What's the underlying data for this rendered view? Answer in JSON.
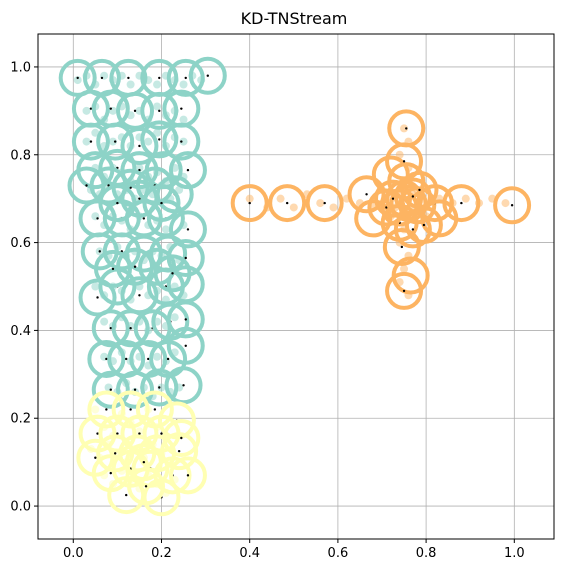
{
  "chart_data": {
    "type": "scatter",
    "title": "KD-TNStream",
    "xlabel": "",
    "ylabel": "",
    "xlim": [
      -0.08,
      1.09
    ],
    "ylim": [
      -0.075,
      1.075
    ],
    "grid": true,
    "xticks": [
      "0.0",
      "0.2",
      "0.4",
      "0.6",
      "0.8",
      "1.0"
    ],
    "yticks": [
      "0.0",
      "0.2",
      "0.4",
      "0.6",
      "0.8",
      "1.0"
    ],
    "colors": {
      "teal": "#8dd3c7",
      "yellow": "#ffffb3",
      "orange": "#fdb462",
      "center": "#000000"
    },
    "series": [
      {
        "color": "teal",
        "points": [
          [
            0.01,
            0.97
          ],
          [
            0.03,
            0.98
          ],
          [
            0.05,
            0.96
          ],
          [
            0.07,
            0.98
          ],
          [
            0.09,
            0.97
          ],
          [
            0.11,
            0.98
          ],
          [
            0.13,
            0.96
          ],
          [
            0.15,
            0.98
          ],
          [
            0.17,
            0.97
          ],
          [
            0.19,
            0.96
          ],
          [
            0.21,
            0.98
          ],
          [
            0.23,
            0.97
          ],
          [
            0.25,
            0.96
          ],
          [
            0.27,
            0.98
          ],
          [
            0.29,
            0.97
          ],
          [
            0.03,
            0.9
          ],
          [
            0.05,
            0.91
          ],
          [
            0.07,
            0.88
          ],
          [
            0.09,
            0.9
          ],
          [
            0.11,
            0.91
          ],
          [
            0.13,
            0.89
          ],
          [
            0.15,
            0.9
          ],
          [
            0.17,
            0.88
          ],
          [
            0.19,
            0.91
          ],
          [
            0.21,
            0.89
          ],
          [
            0.23,
            0.9
          ],
          [
            0.25,
            0.88
          ],
          [
            0.03,
            0.83
          ],
          [
            0.05,
            0.85
          ],
          [
            0.07,
            0.82
          ],
          [
            0.09,
            0.83
          ],
          [
            0.11,
            0.84
          ],
          [
            0.13,
            0.82
          ],
          [
            0.15,
            0.84
          ],
          [
            0.17,
            0.83
          ],
          [
            0.19,
            0.85
          ],
          [
            0.21,
            0.82
          ],
          [
            0.23,
            0.84
          ],
          [
            0.25,
            0.83
          ],
          [
            0.05,
            0.77
          ],
          [
            0.07,
            0.75
          ],
          [
            0.09,
            0.77
          ],
          [
            0.11,
            0.76
          ],
          [
            0.13,
            0.74
          ],
          [
            0.15,
            0.77
          ],
          [
            0.17,
            0.75
          ],
          [
            0.19,
            0.76
          ],
          [
            0.21,
            0.74
          ],
          [
            0.23,
            0.77
          ],
          [
            0.25,
            0.75
          ],
          [
            0.04,
            0.72
          ],
          [
            0.06,
            0.71
          ],
          [
            0.08,
            0.73
          ],
          [
            0.1,
            0.71
          ],
          [
            0.12,
            0.72
          ],
          [
            0.14,
            0.7
          ],
          [
            0.16,
            0.72
          ],
          [
            0.18,
            0.71
          ],
          [
            0.2,
            0.73
          ],
          [
            0.22,
            0.7
          ],
          [
            0.24,
            0.72
          ],
          [
            0.05,
            0.66
          ],
          [
            0.07,
            0.64
          ],
          [
            0.09,
            0.66
          ],
          [
            0.11,
            0.65
          ],
          [
            0.13,
            0.63
          ],
          [
            0.15,
            0.66
          ],
          [
            0.17,
            0.64
          ],
          [
            0.19,
            0.65
          ],
          [
            0.21,
            0.63
          ],
          [
            0.23,
            0.66
          ],
          [
            0.25,
            0.64
          ],
          [
            0.06,
            0.58
          ],
          [
            0.08,
            0.57
          ],
          [
            0.1,
            0.59
          ],
          [
            0.12,
            0.57
          ],
          [
            0.14,
            0.58
          ],
          [
            0.16,
            0.56
          ],
          [
            0.18,
            0.58
          ],
          [
            0.2,
            0.57
          ],
          [
            0.22,
            0.59
          ],
          [
            0.24,
            0.56
          ],
          [
            0.05,
            0.5
          ],
          [
            0.07,
            0.48
          ],
          [
            0.09,
            0.5
          ],
          [
            0.11,
            0.49
          ],
          [
            0.13,
            0.47
          ],
          [
            0.15,
            0.5
          ],
          [
            0.17,
            0.48
          ],
          [
            0.19,
            0.49
          ],
          [
            0.21,
            0.47
          ],
          [
            0.23,
            0.5
          ],
          [
            0.25,
            0.48
          ],
          [
            0.07,
            0.42
          ],
          [
            0.09,
            0.41
          ],
          [
            0.11,
            0.43
          ],
          [
            0.13,
            0.41
          ],
          [
            0.15,
            0.42
          ],
          [
            0.17,
            0.4
          ],
          [
            0.19,
            0.42
          ],
          [
            0.21,
            0.41
          ],
          [
            0.23,
            0.43
          ],
          [
            0.07,
            0.34
          ],
          [
            0.09,
            0.33
          ],
          [
            0.11,
            0.35
          ],
          [
            0.13,
            0.33
          ],
          [
            0.15,
            0.34
          ],
          [
            0.17,
            0.32
          ],
          [
            0.19,
            0.34
          ],
          [
            0.21,
            0.33
          ],
          [
            0.23,
            0.35
          ],
          [
            0.08,
            0.27
          ],
          [
            0.1,
            0.26
          ],
          [
            0.12,
            0.28
          ],
          [
            0.14,
            0.26
          ],
          [
            0.16,
            0.27
          ],
          [
            0.18,
            0.25
          ],
          [
            0.2,
            0.27
          ],
          [
            0.22,
            0.26
          ],
          [
            0.24,
            0.27
          ]
        ],
        "centers": [
          [
            0.01,
            0.975
          ],
          [
            0.065,
            0.975
          ],
          [
            0.125,
            0.975
          ],
          [
            0.195,
            0.975
          ],
          [
            0.255,
            0.975
          ],
          [
            0.305,
            0.98
          ],
          [
            0.04,
            0.905
          ],
          [
            0.085,
            0.905
          ],
          [
            0.14,
            0.9
          ],
          [
            0.195,
            0.9
          ],
          [
            0.245,
            0.905
          ],
          [
            0.04,
            0.83
          ],
          [
            0.095,
            0.83
          ],
          [
            0.15,
            0.82
          ],
          [
            0.195,
            0.835
          ],
          [
            0.245,
            0.83
          ],
          [
            0.05,
            0.765
          ],
          [
            0.1,
            0.77
          ],
          [
            0.15,
            0.765
          ],
          [
            0.205,
            0.765
          ],
          [
            0.26,
            0.765
          ],
          [
            0.03,
            0.73
          ],
          [
            0.08,
            0.73
          ],
          [
            0.13,
            0.725
          ],
          [
            0.185,
            0.73
          ],
          [
            0.23,
            0.71
          ],
          [
            0.055,
            0.655
          ],
          [
            0.11,
            0.655
          ],
          [
            0.16,
            0.655
          ],
          [
            0.21,
            0.655
          ],
          [
            0.26,
            0.63
          ],
          [
            0.06,
            0.58
          ],
          [
            0.11,
            0.58
          ],
          [
            0.16,
            0.575
          ],
          [
            0.215,
            0.575
          ],
          [
            0.255,
            0.565
          ],
          [
            0.055,
            0.475
          ],
          [
            0.1,
            0.5
          ],
          [
            0.15,
            0.48
          ],
          [
            0.21,
            0.5
          ],
          [
            0.255,
            0.505
          ],
          [
            0.085,
            0.405
          ],
          [
            0.13,
            0.405
          ],
          [
            0.18,
            0.405
          ],
          [
            0.22,
            0.42
          ],
          [
            0.255,
            0.425
          ],
          [
            0.075,
            0.335
          ],
          [
            0.12,
            0.335
          ],
          [
            0.17,
            0.335
          ],
          [
            0.215,
            0.335
          ],
          [
            0.255,
            0.365
          ],
          [
            0.085,
            0.265
          ],
          [
            0.14,
            0.265
          ],
          [
            0.195,
            0.27
          ],
          [
            0.25,
            0.275
          ],
          [
            0.09,
            0.54
          ],
          [
            0.14,
            0.545
          ],
          [
            0.19,
            0.545
          ],
          [
            0.225,
            0.53
          ],
          [
            0.1,
            0.69
          ],
          [
            0.2,
            0.69
          ],
          [
            0.15,
            0.7
          ]
        ]
      },
      {
        "color": "yellow",
        "points": [
          [
            0.05,
            0.22
          ],
          [
            0.07,
            0.18
          ],
          [
            0.09,
            0.16
          ],
          [
            0.11,
            0.21
          ],
          [
            0.13,
            0.19
          ],
          [
            0.15,
            0.17
          ],
          [
            0.17,
            0.22
          ],
          [
            0.19,
            0.18
          ],
          [
            0.21,
            0.16
          ],
          [
            0.04,
            0.13
          ],
          [
            0.06,
            0.11
          ],
          [
            0.08,
            0.14
          ],
          [
            0.1,
            0.12
          ],
          [
            0.12,
            0.1
          ],
          [
            0.14,
            0.13
          ],
          [
            0.16,
            0.11
          ],
          [
            0.18,
            0.14
          ],
          [
            0.2,
            0.12
          ],
          [
            0.22,
            0.1
          ],
          [
            0.07,
            0.07
          ],
          [
            0.09,
            0.05
          ],
          [
            0.11,
            0.08
          ],
          [
            0.13,
            0.06
          ],
          [
            0.15,
            0.04
          ],
          [
            0.17,
            0.07
          ],
          [
            0.19,
            0.05
          ],
          [
            0.21,
            0.03
          ],
          [
            0.23,
            0.06
          ]
        ],
        "centers": [
          [
            0.075,
            0.22
          ],
          [
            0.13,
            0.22
          ],
          [
            0.185,
            0.22
          ],
          [
            0.235,
            0.195
          ],
          [
            0.055,
            0.165
          ],
          [
            0.1,
            0.165
          ],
          [
            0.15,
            0.165
          ],
          [
            0.2,
            0.165
          ],
          [
            0.245,
            0.155
          ],
          [
            0.05,
            0.11
          ],
          [
            0.095,
            0.12
          ],
          [
            0.145,
            0.12
          ],
          [
            0.19,
            0.12
          ],
          [
            0.24,
            0.125
          ],
          [
            0.085,
            0.075
          ],
          [
            0.13,
            0.085
          ],
          [
            0.175,
            0.085
          ],
          [
            0.225,
            0.07
          ],
          [
            0.26,
            0.07
          ],
          [
            0.12,
            0.025
          ],
          [
            0.2,
            0.02
          ],
          [
            0.165,
            0.045
          ],
          [
            0.16,
            0.1
          ]
        ]
      },
      {
        "color": "orange",
        "points": [
          [
            0.4,
            0.7
          ],
          [
            0.44,
            0.68
          ],
          [
            0.47,
            0.7
          ],
          [
            0.5,
            0.68
          ],
          [
            0.53,
            0.71
          ],
          [
            0.56,
            0.69
          ],
          [
            0.59,
            0.68
          ],
          [
            0.62,
            0.7
          ],
          [
            0.65,
            0.69
          ],
          [
            0.68,
            0.68
          ],
          [
            0.71,
            0.7
          ],
          [
            0.74,
            0.69
          ],
          [
            0.77,
            0.71
          ],
          [
            0.8,
            0.68
          ],
          [
            0.83,
            0.7
          ],
          [
            0.86,
            0.69
          ],
          [
            0.89,
            0.7
          ],
          [
            0.92,
            0.69
          ],
          [
            0.95,
            0.7
          ],
          [
            0.98,
            0.69
          ],
          [
            0.75,
            0.86
          ],
          [
            0.76,
            0.83
          ],
          [
            0.74,
            0.8
          ],
          [
            0.76,
            0.77
          ],
          [
            0.75,
            0.74
          ],
          [
            0.74,
            0.71
          ],
          [
            0.76,
            0.66
          ],
          [
            0.75,
            0.63
          ],
          [
            0.74,
            0.6
          ],
          [
            0.76,
            0.57
          ],
          [
            0.75,
            0.54
          ],
          [
            0.74,
            0.51
          ],
          [
            0.76,
            0.48
          ],
          [
            0.7,
            0.72
          ],
          [
            0.72,
            0.66
          ],
          [
            0.78,
            0.72
          ],
          [
            0.8,
            0.66
          ],
          [
            0.73,
            0.68
          ],
          [
            0.77,
            0.68
          ]
        ],
        "centers": [
          [
            0.4,
            0.69
          ],
          [
            0.485,
            0.69
          ],
          [
            0.57,
            0.69
          ],
          [
            0.665,
            0.71
          ],
          [
            0.68,
            0.655
          ],
          [
            0.71,
            0.68
          ],
          [
            0.74,
            0.68
          ],
          [
            0.76,
            0.69
          ],
          [
            0.78,
            0.685
          ],
          [
            0.75,
            0.7
          ],
          [
            0.72,
            0.755
          ],
          [
            0.755,
            0.74
          ],
          [
            0.785,
            0.72
          ],
          [
            0.82,
            0.69
          ],
          [
            0.83,
            0.655
          ],
          [
            0.74,
            0.645
          ],
          [
            0.77,
            0.63
          ],
          [
            0.795,
            0.64
          ],
          [
            0.725,
            0.7
          ],
          [
            0.77,
            0.705
          ],
          [
            0.88,
            0.69
          ],
          [
            0.995,
            0.685
          ],
          [
            0.755,
            0.86
          ],
          [
            0.75,
            0.785
          ],
          [
            0.745,
            0.59
          ],
          [
            0.765,
            0.525
          ],
          [
            0.75,
            0.49
          ]
        ]
      }
    ]
  }
}
